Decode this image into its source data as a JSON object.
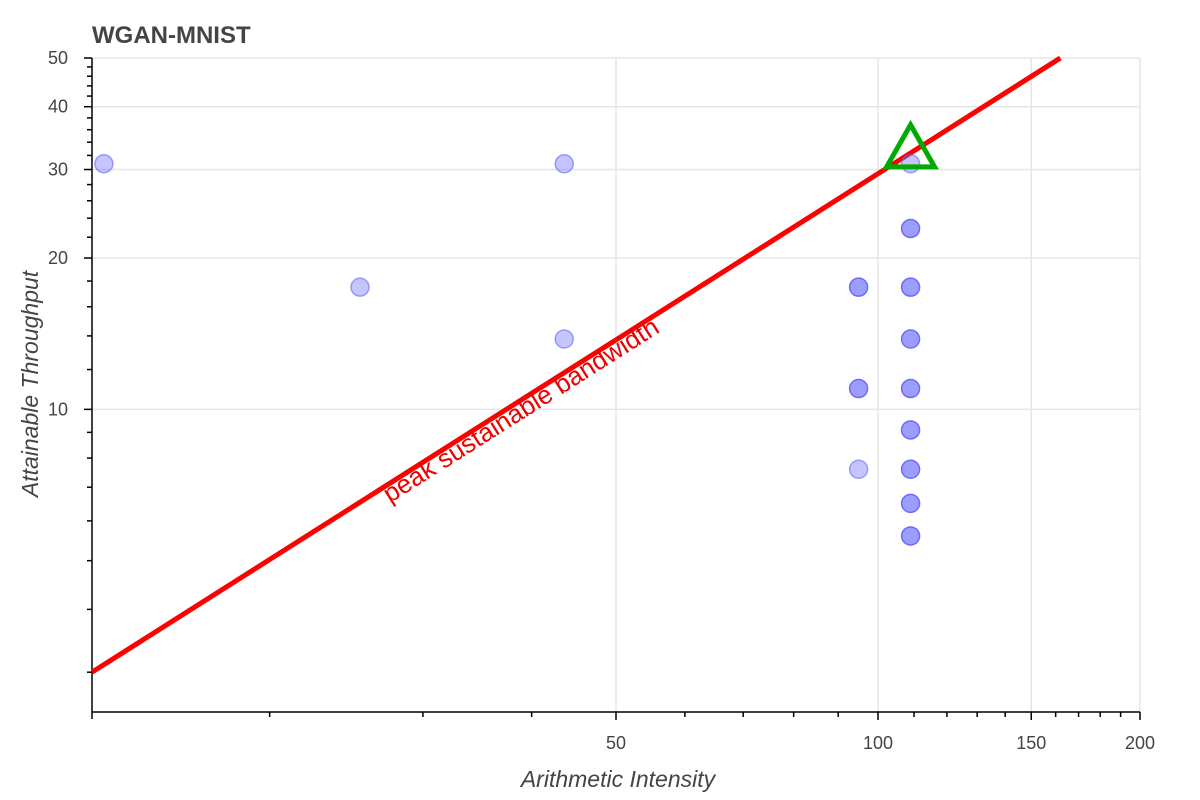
{
  "chart_data": {
    "type": "scatter",
    "title": "WGAN-MNIST",
    "xlabel": "Arithmetic Intensity",
    "ylabel": "Attainable Throughput",
    "xscale": "log",
    "yscale": "log",
    "xlim": [
      12.5,
      200
    ],
    "ylim": [
      2.5,
      50
    ],
    "x_ticks": [
      50,
      100,
      150,
      200
    ],
    "y_ticks": [
      10,
      20,
      30,
      40,
      50
    ],
    "grid": true,
    "colors": {
      "points": "#6666ff",
      "roofline": "#ff0000",
      "marker": "#00aa00",
      "annotation": "#ee0000"
    },
    "series": [
      {
        "type": "scatter",
        "points": [
          {
            "x": 12.9,
            "y": 30.8,
            "opacity": 0.5
          },
          {
            "x": 25.4,
            "y": 17.5,
            "opacity": 0.5
          },
          {
            "x": 43.6,
            "y": 30.8,
            "opacity": 0.5
          },
          {
            "x": 43.6,
            "y": 13.8,
            "opacity": 0.5
          },
          {
            "x": 95,
            "y": 17.5,
            "opacity": 0.85
          },
          {
            "x": 95,
            "y": 11.0,
            "opacity": 0.85
          },
          {
            "x": 95,
            "y": 7.6,
            "opacity": 0.5
          },
          {
            "x": 109,
            "y": 30.8,
            "opacity": 0.5
          },
          {
            "x": 109,
            "y": 22.9,
            "opacity": 0.85
          },
          {
            "x": 109,
            "y": 17.5,
            "opacity": 0.85
          },
          {
            "x": 109,
            "y": 13.8,
            "opacity": 0.85
          },
          {
            "x": 109,
            "y": 11.0,
            "opacity": 0.85
          },
          {
            "x": 109,
            "y": 9.1,
            "opacity": 0.85
          },
          {
            "x": 109,
            "y": 7.6,
            "opacity": 0.85
          },
          {
            "x": 109,
            "y": 6.5,
            "opacity": 0.85
          },
          {
            "x": 109,
            "y": 5.6,
            "opacity": 0.85
          }
        ]
      },
      {
        "type": "line",
        "points": [
          {
            "x": 12.5,
            "y": 3.0
          },
          {
            "x": 162,
            "y": 50
          }
        ]
      },
      {
        "type": "marker",
        "shape": "triangle",
        "points": [
          {
            "x": 109,
            "y": 31.5
          }
        ]
      }
    ],
    "annotations": [
      {
        "text": "peak sustainable bandwidth",
        "x": 27.5,
        "y": 6.5
      }
    ]
  }
}
